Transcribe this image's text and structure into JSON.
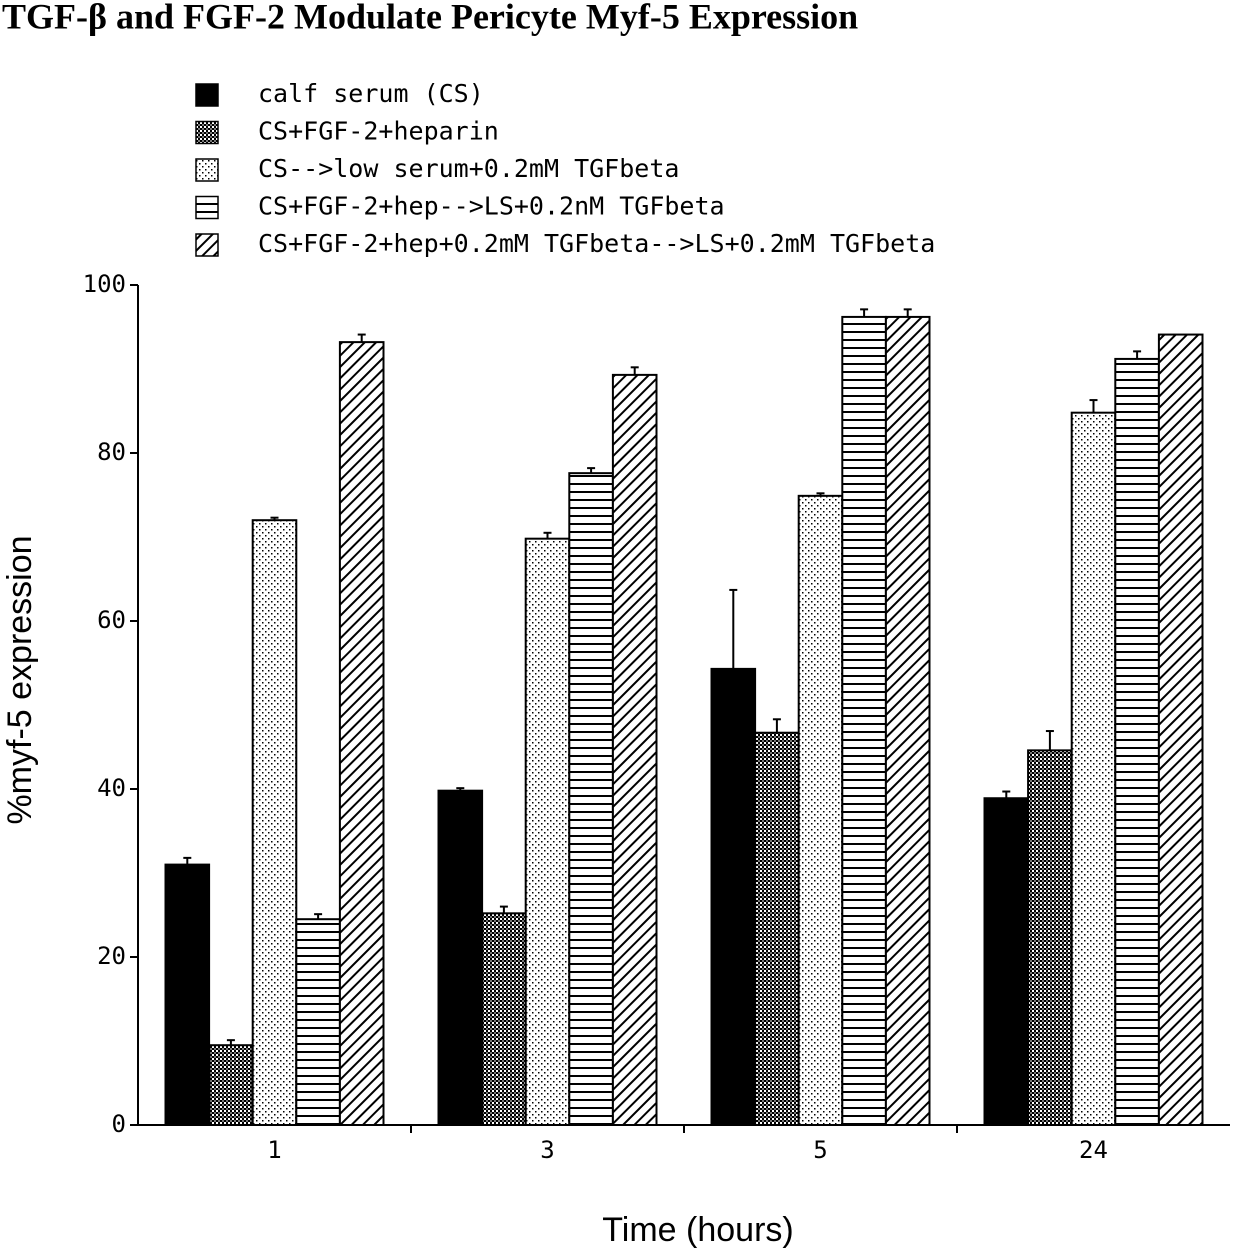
{
  "chart_data": {
    "type": "bar",
    "title": "TGF-β and FGF-2 Modulate Pericyte Myf-5 Expression",
    "x_label": "Time (hours)",
    "y_label": "%myf-5 expression",
    "categories": [
      "1",
      "3",
      "5",
      "24"
    ],
    "ylim": [
      0,
      100
    ],
    "yticks": [
      0,
      20,
      40,
      60,
      80,
      100
    ],
    "grid": false,
    "series": [
      {
        "name": "calf serum (CS)",
        "color": "#000000",
        "pattern": "solid",
        "values": [
          31,
          39.8,
          54.3,
          38.9
        ],
        "errors": [
          0.8,
          0.3,
          9.4,
          0.8
        ]
      },
      {
        "name": "CS+FGF-2+heparin",
        "color": "#000000",
        "pattern": "crosshatch",
        "values": [
          9.5,
          25.2,
          46.7,
          44.6
        ],
        "errors": [
          0.6,
          0.8,
          1.6,
          2.3
        ]
      },
      {
        "name": "CS-->low serum+0.2mM TGFbeta",
        "color": "#000000",
        "pattern": "dots",
        "values": [
          72,
          69.8,
          74.9,
          84.8
        ],
        "errors": [
          0.3,
          0.7,
          0.3,
          1.5
        ]
      },
      {
        "name": "CS+FGF-2+hep-->LS+0.2nM TGFbeta",
        "color": "#000000",
        "pattern": "hlines",
        "values": [
          24.5,
          77.6,
          96.2,
          91.2
        ],
        "errors": [
          0.6,
          0.6,
          0.9,
          0.9
        ]
      },
      {
        "name": "CS+FGF-2+hep+0.2mM TGFbeta-->LS+0.2mM TGFbeta",
        "color": "#000000",
        "pattern": "diagonal",
        "values": [
          93.2,
          89.3,
          96.2,
          94.1
        ],
        "errors": [
          0.9,
          0.9,
          0.9,
          null
        ]
      }
    ]
  }
}
